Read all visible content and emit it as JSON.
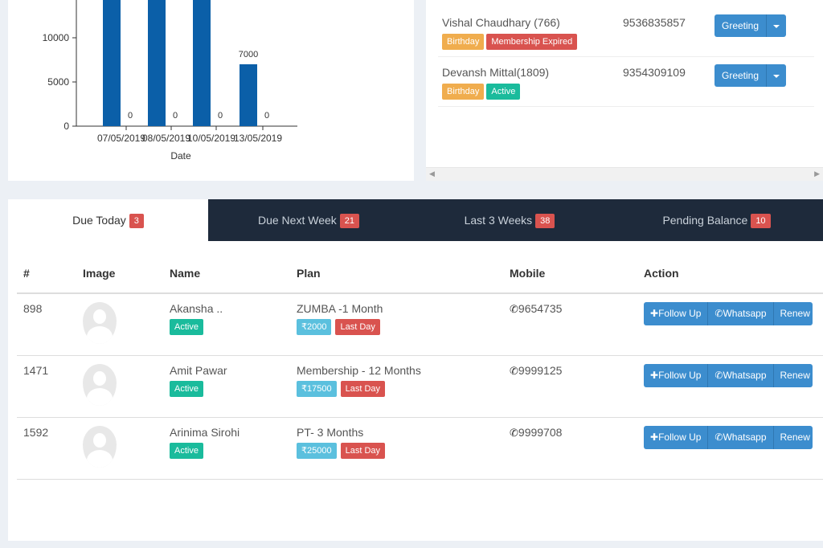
{
  "chart_data": {
    "type": "bar",
    "xlabel": "Date",
    "ylabel": "",
    "categories": [
      "07/05/2019",
      "08/05/2019",
      "10/05/2019",
      "13/05/2019"
    ],
    "series": [
      {
        "values": [
          14500,
          14500,
          14500,
          7000
        ],
        "color": "#0b5fa8"
      },
      {
        "values": [
          0,
          0,
          0,
          0
        ],
        "color": "#0b5fa8"
      }
    ],
    "data_labels": [
      "0",
      "0",
      "0",
      "7000",
      "0"
    ],
    "yticks": [
      "0",
      "5000",
      "10000"
    ],
    "ylim": [
      0,
      14500
    ]
  },
  "birthdays": [
    {
      "name": "Vishal Chaudhary (766)",
      "phone": "9536835857",
      "badges": [
        "Birthday",
        "Membership Expired"
      ],
      "badge_colors": [
        "#f0ad4e",
        "#d9534f"
      ],
      "button": "Greeting"
    },
    {
      "name": "Devansh Mittal(1809)",
      "phone": "9354309109",
      "badges": [
        "Birthday",
        "Active"
      ],
      "badge_colors": [
        "#f0ad4e",
        "#1abb9c"
      ],
      "button": "Greeting"
    }
  ],
  "tabs": [
    {
      "label": "Due Today",
      "count": "3"
    },
    {
      "label": "Due Next Week",
      "count": "21"
    },
    {
      "label": "Last 3 Weeks",
      "count": "38"
    },
    {
      "label": "Pending Balance",
      "count": "10"
    }
  ],
  "table": {
    "headers": [
      "#",
      "Image",
      "Name",
      "Plan",
      "Mobile",
      "Action"
    ],
    "rows": [
      {
        "id": "898",
        "name": "Akansha ..",
        "status": "Active",
        "plan": "ZUMBA -1 Month",
        "amount": "₹2000",
        "due": "Last Day",
        "mobile": "9654735"
      },
      {
        "id": "1471",
        "name": "Amit Pawar",
        "status": "Active",
        "plan": "Membership - 12 Months",
        "amount": "₹17500",
        "due": "Last Day",
        "mobile": "9999125"
      },
      {
        "id": "1592",
        "name": "Arinima Sirohi",
        "status": "Active",
        "plan": "PT- 3 Months",
        "amount": "₹25000",
        "due": "Last Day",
        "mobile": "9999708"
      }
    ],
    "actions": {
      "follow_up": "Follow Up",
      "whatsapp": "Whatsapp",
      "renew": "Renew"
    }
  },
  "colors": {
    "tabbar": "#1e2a3b",
    "bar": "#0b5fa8",
    "button": "#3c8dce"
  }
}
